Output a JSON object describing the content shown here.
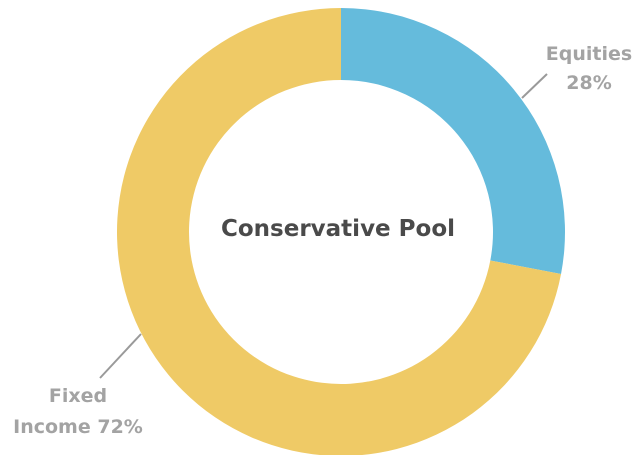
{
  "chart_data": {
    "type": "pie",
    "center_label": "Conservative Pool",
    "slices": [
      {
        "label_line1": "Equities",
        "label_line2": "28%",
        "value": 28,
        "color": "#65bbdc"
      },
      {
        "label_line1": "Fixed",
        "label_line2": "Income 72%",
        "value": 72,
        "color": "#efca66"
      }
    ],
    "label_color": "#a3a3a3",
    "leader_color": "#9a9a9a"
  }
}
